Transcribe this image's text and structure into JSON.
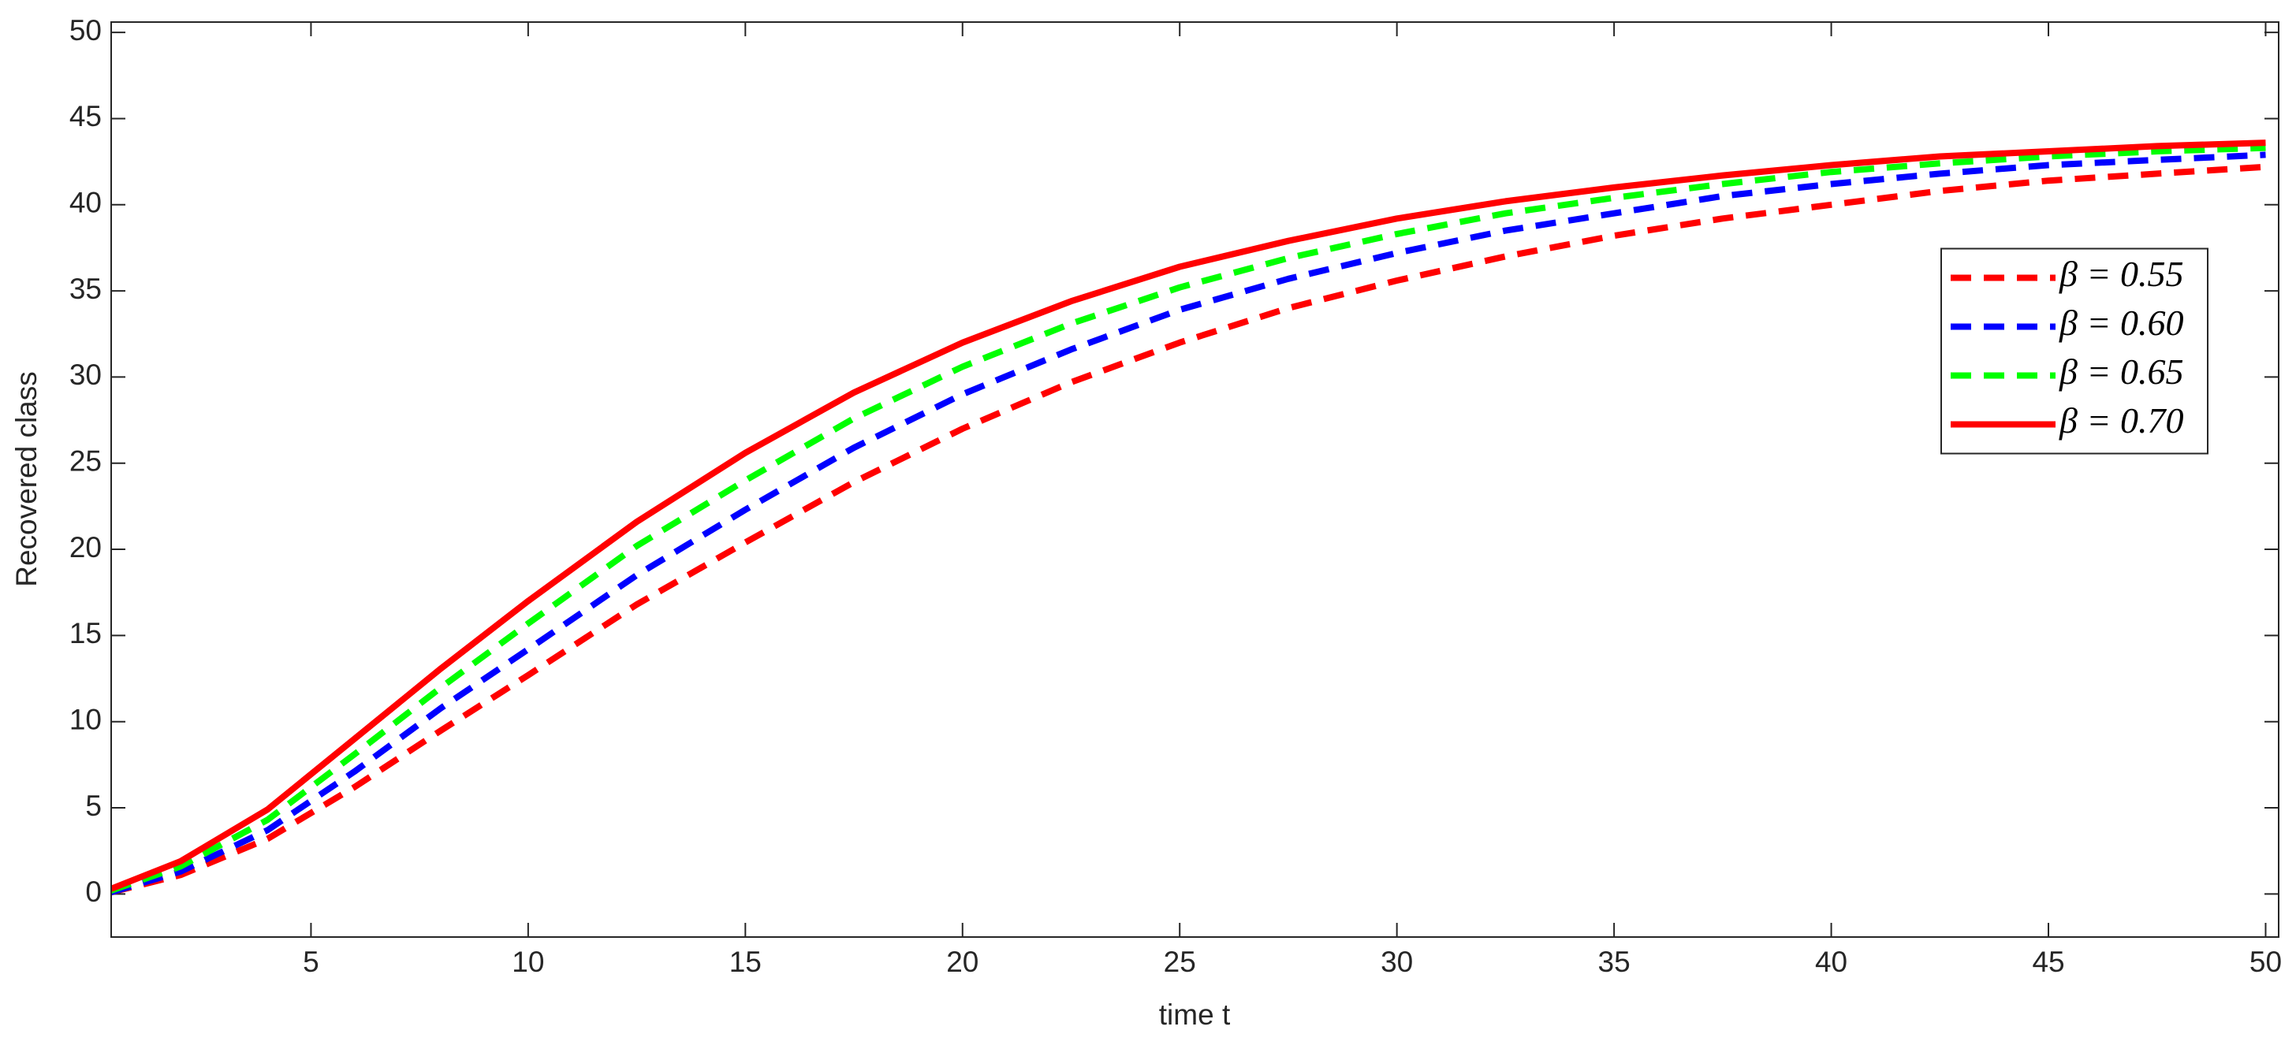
{
  "chart_data": {
    "type": "line",
    "xlabel": "time t",
    "ylabel": "Recovered  class",
    "x": [
      0.4,
      2,
      4,
      6,
      8,
      10,
      12.5,
      15,
      17.5,
      20,
      22.5,
      25,
      27.5,
      30,
      32.5,
      35,
      37.5,
      40,
      42.5,
      45,
      47.5,
      50
    ],
    "series": [
      {
        "name": "β = 0.55",
        "color": "#ff0000",
        "line_style": "dashed",
        "values": [
          0.1,
          1.1,
          3.2,
          6.2,
          9.5,
          12.7,
          16.8,
          20.4,
          23.9,
          27.0,
          29.7,
          32.0,
          34.0,
          35.6,
          37.0,
          38.2,
          39.2,
          40.0,
          40.8,
          41.4,
          41.8,
          42.2
        ]
      },
      {
        "name": "β = 0.60",
        "color": "#0000ff",
        "line_style": "dashed",
        "values": [
          0.1,
          1.3,
          3.7,
          7.1,
          10.8,
          14.2,
          18.5,
          22.3,
          25.9,
          29.0,
          31.6,
          33.9,
          35.7,
          37.2,
          38.5,
          39.5,
          40.5,
          41.2,
          41.8,
          42.3,
          42.6,
          42.9
        ]
      },
      {
        "name": "β = 0.65",
        "color": "#00ff00",
        "line_style": "dashed",
        "values": [
          0.2,
          1.6,
          4.3,
          8.1,
          12.0,
          15.7,
          20.2,
          24.0,
          27.6,
          30.6,
          33.1,
          35.2,
          36.9,
          38.3,
          39.5,
          40.4,
          41.2,
          41.9,
          42.4,
          42.8,
          43.1,
          43.3
        ]
      },
      {
        "name": "β = 0.70",
        "color": "#ff0000",
        "line_style": "solid",
        "values": [
          0.3,
          1.9,
          4.9,
          9.0,
          13.1,
          17.0,
          21.6,
          25.6,
          29.1,
          32.0,
          34.4,
          36.4,
          37.9,
          39.2,
          40.2,
          41.0,
          41.7,
          42.3,
          42.8,
          43.1,
          43.4,
          43.6
        ]
      }
    ],
    "xlim": [
      0.4,
      50.3
    ],
    "xticks": [
      5,
      10,
      15,
      20,
      25,
      30,
      35,
      40,
      45,
      50
    ],
    "ylim": [
      -2.5,
      50.6
    ],
    "yticks": [
      0,
      5,
      10,
      15,
      20,
      25,
      30,
      35,
      40,
      45,
      50
    ],
    "grid": false,
    "legend": "right"
  }
}
